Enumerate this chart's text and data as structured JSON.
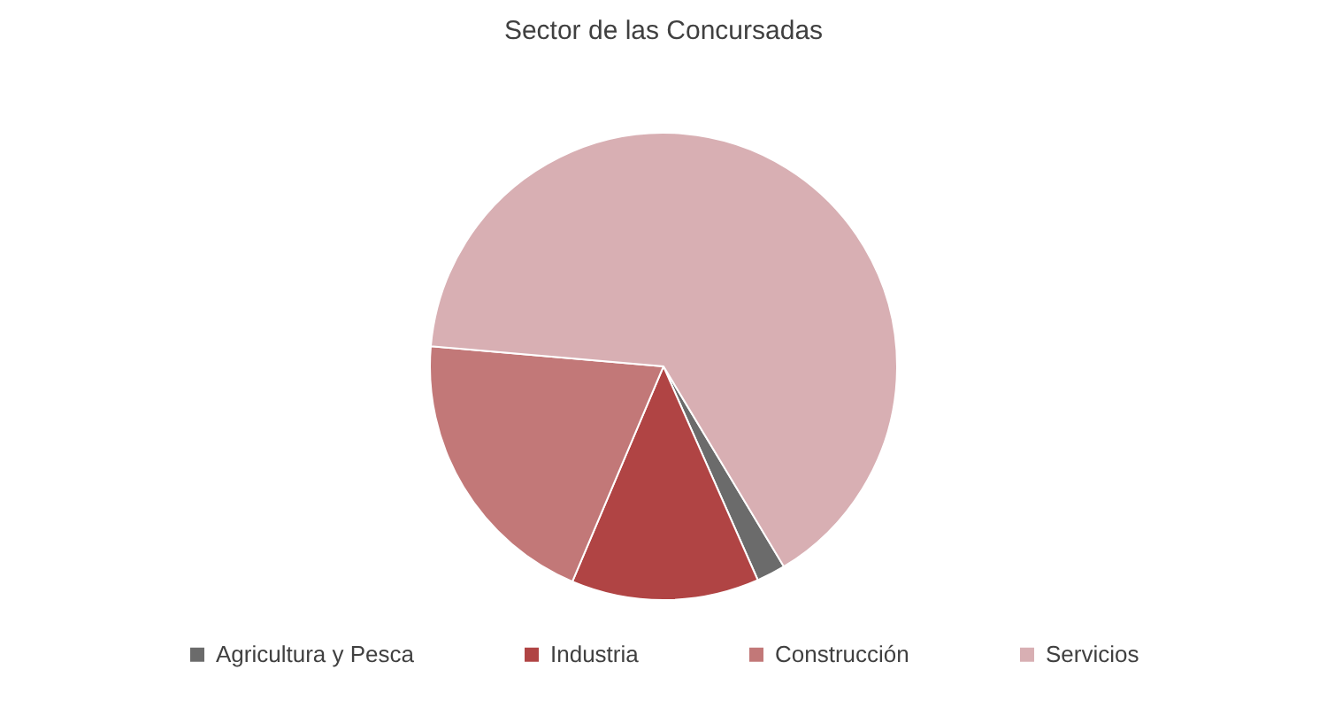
{
  "chart_data": {
    "type": "pie",
    "title": "Sector de las Concursadas",
    "categories": [
      "Agricultura y Pesca",
      "Industria",
      "Construcción",
      "Servicios"
    ],
    "values": [
      2,
      13,
      20,
      65
    ],
    "colors": [
      "#6b6b6b",
      "#b04444",
      "#c27878",
      "#d8afb3"
    ],
    "legend": "bottom"
  }
}
